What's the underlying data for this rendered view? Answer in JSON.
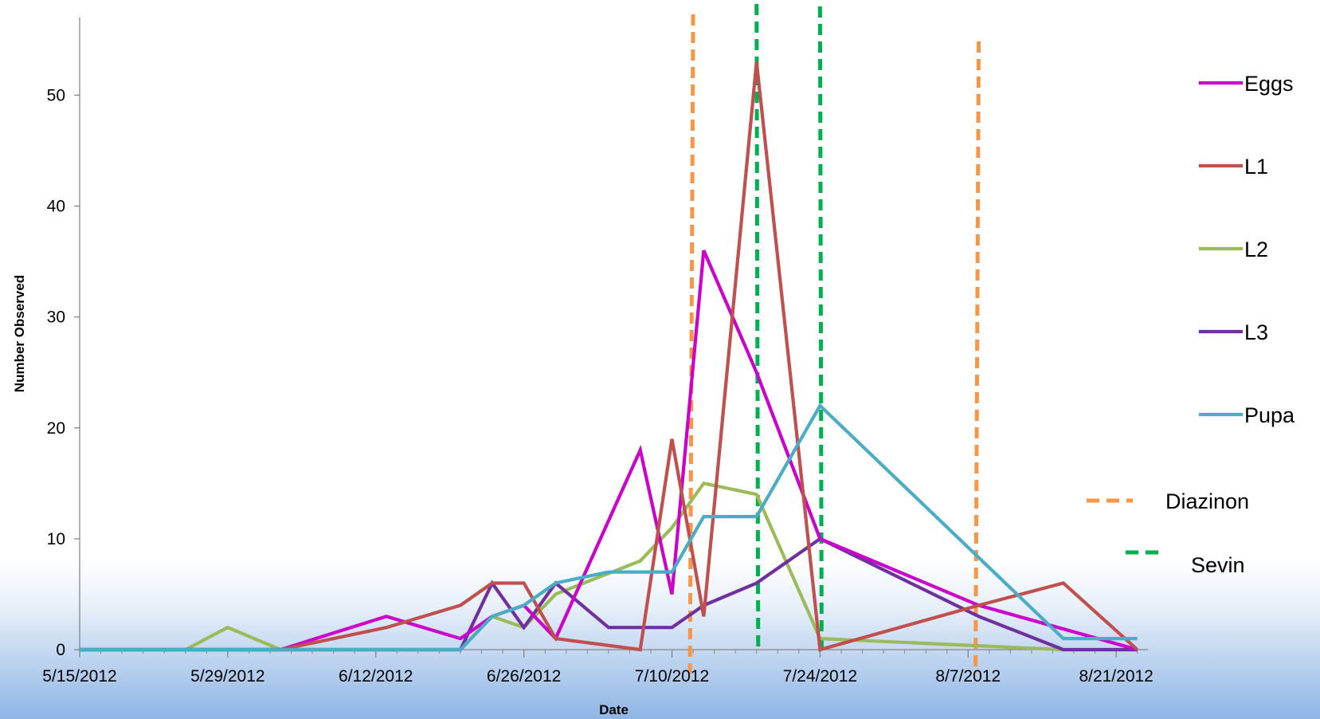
{
  "chart_data": {
    "type": "line",
    "title": "",
    "xlabel": "Date",
    "ylabel": "Number Observed",
    "x_axis": {
      "type": "date",
      "ticks": [
        "5/15/2012",
        "5/29/2012",
        "6/12/2012",
        "6/26/2012",
        "7/10/2012",
        "7/24/2012",
        "8/7/2012",
        "8/21/2012"
      ],
      "range": [
        "2012-05-15",
        "2012-08-24"
      ]
    },
    "y_axis": {
      "ticks": [
        0,
        10,
        20,
        30,
        40,
        50
      ],
      "range": [
        0,
        57
      ]
    },
    "grid": false,
    "legend_position": "right",
    "series": [
      {
        "name": "Eggs",
        "color": "#cc00cc",
        "points": [
          [
            "2012-05-15",
            0
          ],
          [
            "2012-06-03",
            0
          ],
          [
            "2012-06-13",
            3
          ],
          [
            "2012-06-20",
            1
          ],
          [
            "2012-06-23",
            3
          ],
          [
            "2012-06-26",
            4
          ],
          [
            "2012-06-29",
            1
          ],
          [
            "2012-07-07",
            18
          ],
          [
            "2012-07-10",
            5
          ],
          [
            "2012-07-13",
            36
          ],
          [
            "2012-07-18",
            25
          ],
          [
            "2012-07-24",
            10
          ],
          [
            "2012-08-08",
            4
          ],
          [
            "2012-08-23",
            0
          ]
        ]
      },
      {
        "name": "L1",
        "color": "#c0504d",
        "points": [
          [
            "2012-05-15",
            0
          ],
          [
            "2012-06-03",
            0
          ],
          [
            "2012-06-13",
            2
          ],
          [
            "2012-06-20",
            4
          ],
          [
            "2012-06-23",
            6
          ],
          [
            "2012-06-26",
            6
          ],
          [
            "2012-06-29",
            1
          ],
          [
            "2012-07-07",
            0
          ],
          [
            "2012-07-10",
            19
          ],
          [
            "2012-07-13",
            3
          ],
          [
            "2012-07-18",
            53
          ],
          [
            "2012-07-24",
            0
          ],
          [
            "2012-08-08",
            4
          ],
          [
            "2012-08-16",
            6
          ],
          [
            "2012-08-23",
            0
          ]
        ]
      },
      {
        "name": "L2",
        "color": "#9bbb59",
        "points": [
          [
            "2012-05-15",
            0
          ],
          [
            "2012-05-25",
            0
          ],
          [
            "2012-05-29",
            2
          ],
          [
            "2012-06-03",
            0
          ],
          [
            "2012-06-20",
            0
          ],
          [
            "2012-06-23",
            3
          ],
          [
            "2012-06-26",
            2
          ],
          [
            "2012-06-29",
            5
          ],
          [
            "2012-07-07",
            8
          ],
          [
            "2012-07-10",
            11
          ],
          [
            "2012-07-13",
            15
          ],
          [
            "2012-07-18",
            14
          ],
          [
            "2012-07-24",
            1
          ],
          [
            "2012-08-16",
            0
          ],
          [
            "2012-08-23",
            0
          ]
        ]
      },
      {
        "name": "L3",
        "color": "#7030a0",
        "points": [
          [
            "2012-05-15",
            0
          ],
          [
            "2012-06-20",
            0
          ],
          [
            "2012-06-23",
            6
          ],
          [
            "2012-06-26",
            2
          ],
          [
            "2012-06-29",
            6
          ],
          [
            "2012-07-04",
            2
          ],
          [
            "2012-07-10",
            2
          ],
          [
            "2012-07-13",
            4
          ],
          [
            "2012-07-18",
            6
          ],
          [
            "2012-07-24",
            10
          ],
          [
            "2012-08-08",
            3
          ],
          [
            "2012-08-16",
            0
          ],
          [
            "2012-08-23",
            0
          ]
        ]
      },
      {
        "name": "Pupa",
        "color": "#4bacc6",
        "points": [
          [
            "2012-05-15",
            0
          ],
          [
            "2012-06-20",
            0
          ],
          [
            "2012-06-23",
            3
          ],
          [
            "2012-06-26",
            4
          ],
          [
            "2012-06-29",
            6
          ],
          [
            "2012-07-04",
            7
          ],
          [
            "2012-07-10",
            7
          ],
          [
            "2012-07-13",
            12
          ],
          [
            "2012-07-18",
            12
          ],
          [
            "2012-07-24",
            22
          ],
          [
            "2012-08-16",
            1
          ],
          [
            "2012-08-23",
            1
          ]
        ]
      }
    ],
    "reference_lines": [
      {
        "name": "Diazinon",
        "color": "#f79646",
        "dates": [
          "2012-07-12",
          "2012-08-08"
        ]
      },
      {
        "name": "Sevin",
        "color": "#00b050",
        "dates": [
          "2012-07-18",
          "2012-07-24"
        ]
      }
    ]
  }
}
